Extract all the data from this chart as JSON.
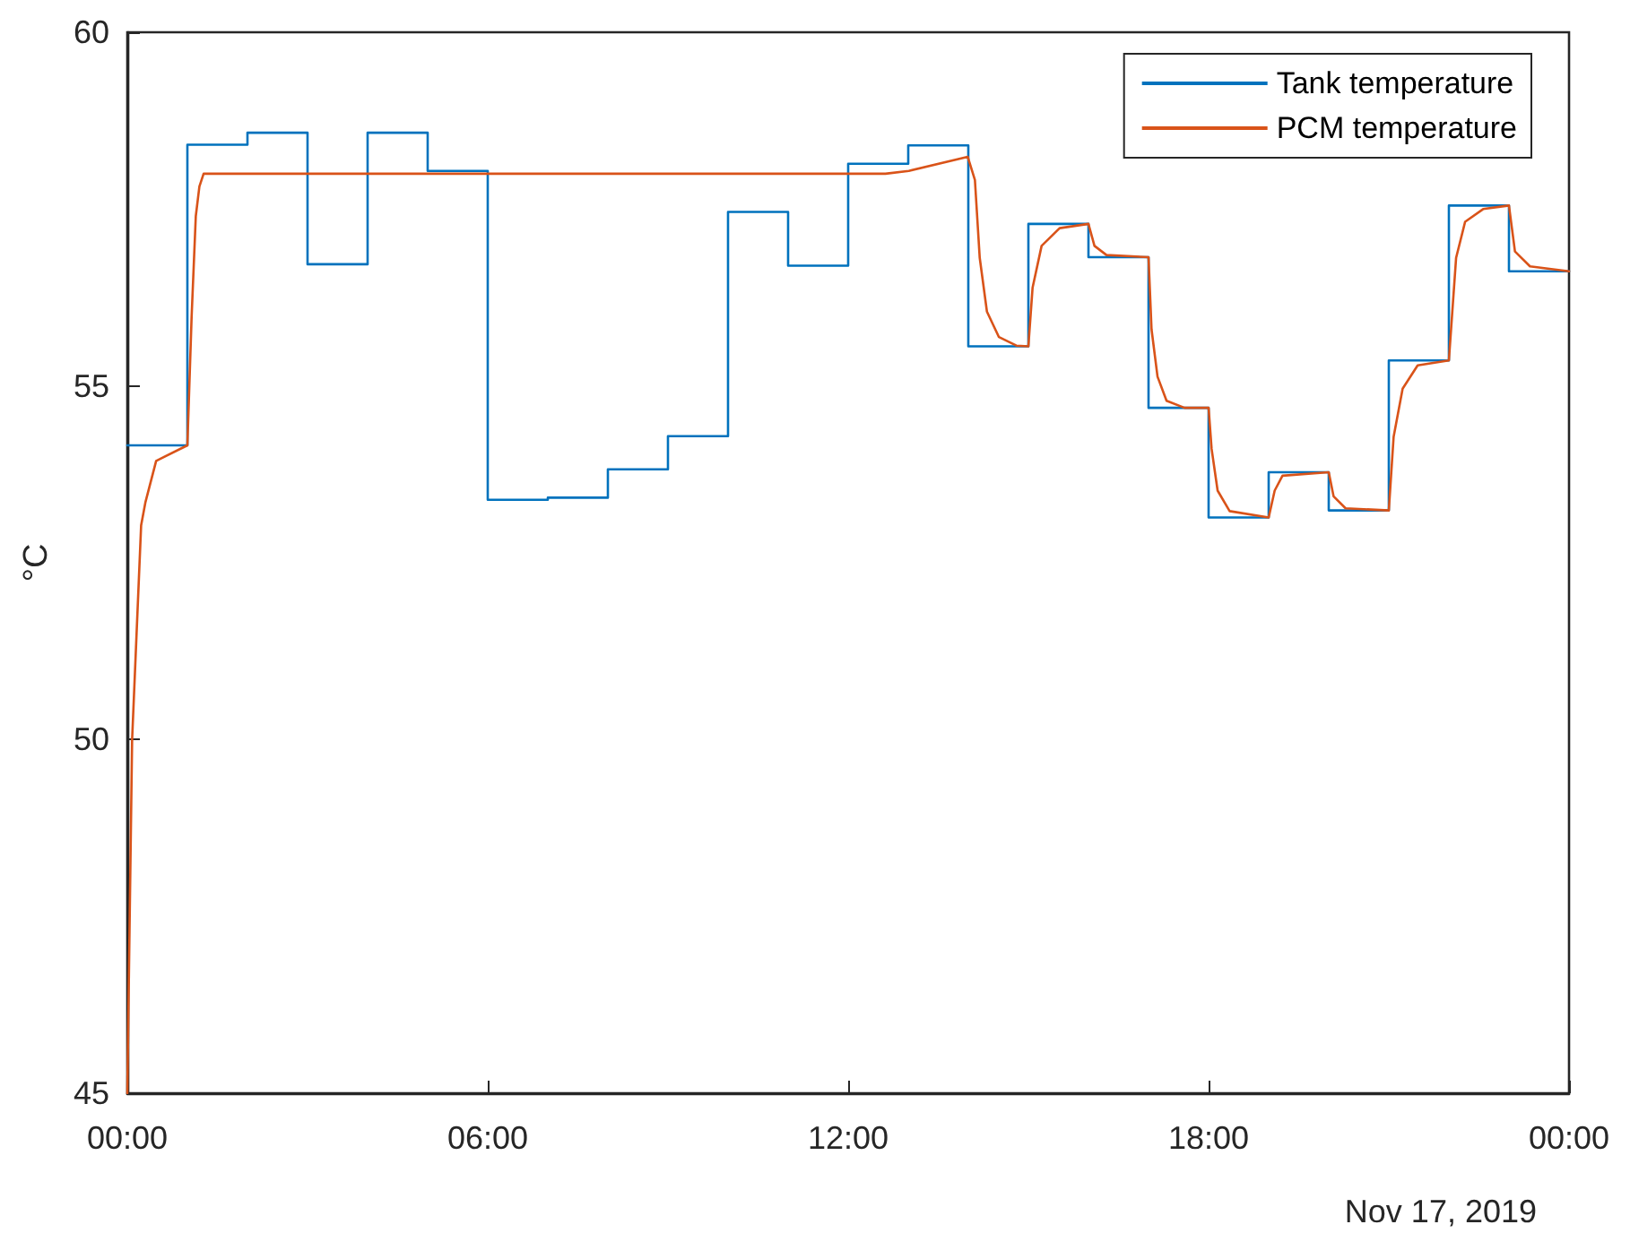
{
  "chart_data": {
    "type": "line",
    "ylabel": "°C",
    "annotations": [
      "Nov 17, 2019"
    ],
    "xlim": [
      0,
      24
    ],
    "xticks": [
      {
        "value": 0,
        "label": "00:00"
      },
      {
        "value": 6,
        "label": "06:00"
      },
      {
        "value": 12,
        "label": "12:00"
      },
      {
        "value": 18,
        "label": "18:00"
      },
      {
        "value": 24,
        "label": "00:00"
      }
    ],
    "ylim": [
      45,
      60
    ],
    "yticks": [
      45,
      50,
      55,
      60
    ],
    "grid": false,
    "legend": "top right",
    "marker": "none",
    "line_style": "solid",
    "series": [
      {
        "name": "Tank temperature",
        "type": "step",
        "color": "#0072bd",
        "x": [
          0,
          1,
          2,
          3,
          4,
          5,
          6,
          7,
          8,
          9,
          10,
          11,
          12,
          13,
          14,
          15,
          16,
          17,
          18,
          19,
          20,
          21,
          22,
          23,
          24
        ],
        "values": [
          54.16,
          58.41,
          58.58,
          56.72,
          58.58,
          58.04,
          53.39,
          53.42,
          53.82,
          54.29,
          57.46,
          56.7,
          58.14,
          58.4,
          55.56,
          57.29,
          56.82,
          54.69,
          53.14,
          53.78,
          53.24,
          55.36,
          57.55,
          56.62,
          56.62
        ]
      },
      {
        "name": "PCM temperature",
        "type": "line",
        "color": "#d95319",
        "x": [
          0,
          0.08,
          0.23,
          0.3,
          0.48,
          1,
          1.07,
          1.14,
          1.2,
          1.27,
          12.62,
          13.01,
          13.99,
          14.11,
          14.19,
          14.31,
          14.51,
          14.8,
          15,
          15.07,
          15.22,
          15.52,
          16,
          16.1,
          16.3,
          17,
          17.05,
          17.15,
          17.3,
          17.6,
          18,
          18.05,
          18.15,
          18.35,
          19,
          19.1,
          19.23,
          20,
          20.08,
          20.28,
          21,
          21.08,
          21.23,
          21.48,
          22,
          22.12,
          22.27,
          22.57,
          23,
          23.1,
          23.35,
          24
        ],
        "values": [
          45,
          50,
          53.03,
          53.35,
          53.94,
          54.16,
          55.97,
          57.4,
          57.82,
          58,
          58,
          58.04,
          58.24,
          57.91,
          56.81,
          56.05,
          55.69,
          55.57,
          55.56,
          56.39,
          56.98,
          57.23,
          57.29,
          56.98,
          56.85,
          56.82,
          55.8,
          55.13,
          54.79,
          54.69,
          54.69,
          54.11,
          53.52,
          53.23,
          53.14,
          53.52,
          53.73,
          53.78,
          53.44,
          53.27,
          53.24,
          54.28,
          54.96,
          55.29,
          55.36,
          56.81,
          57.32,
          57.5,
          57.55,
          56.9,
          56.69,
          56.62
        ]
      }
    ]
  }
}
